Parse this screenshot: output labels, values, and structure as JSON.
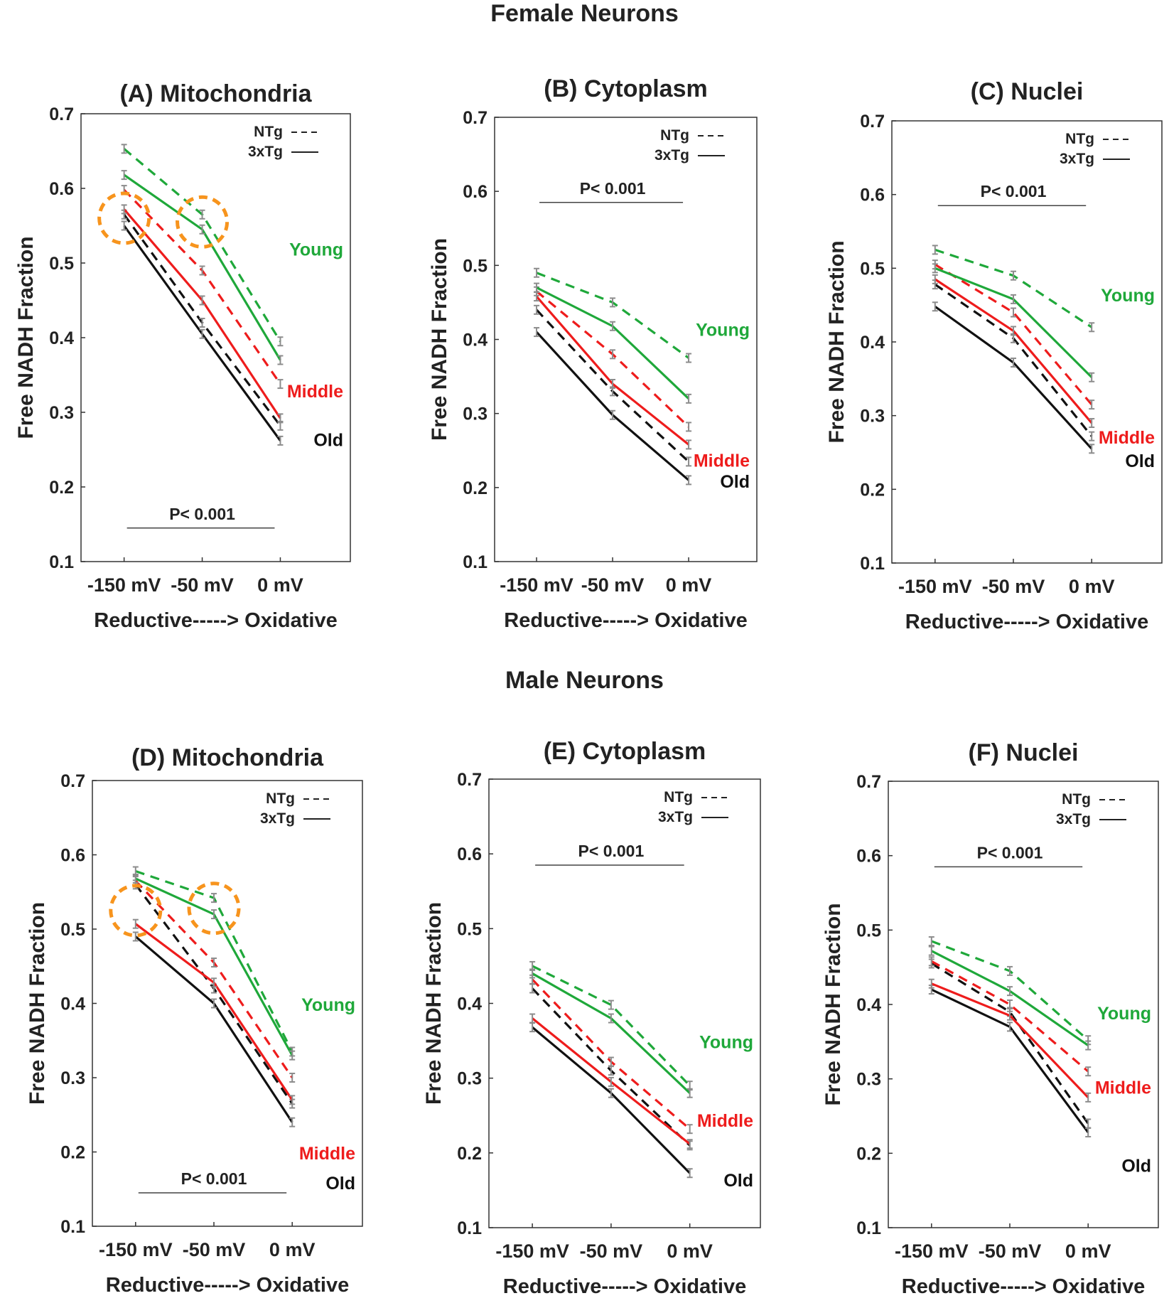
{
  "groups": [
    {
      "title": "Female Neurons"
    },
    {
      "title": "Male Neurons"
    }
  ],
  "colors": {
    "young": "#1fa83a",
    "middle": "#ee1c1c",
    "old": "#111111",
    "highlight": "#f7941d",
    "errorbar": "#8c8c8c"
  },
  "chart_data": [
    {
      "type": "line",
      "group": "Female Neurons",
      "title": "(A) Mitochondria",
      "xlabel": "Reductive-----> Oxidative",
      "ylabel": "Free NADH Fraction",
      "categories": [
        "-150 mV",
        "-50 mV",
        "0 mV"
      ],
      "ylim": [
        0.1,
        0.7
      ],
      "yticks": [
        "0.1",
        "0.2",
        "0.3",
        "0.4",
        "0.5",
        "0.6",
        "0.7"
      ],
      "legend": {
        "ntg": "NTg",
        "tg": "3xTg",
        "position": "top-right"
      },
      "pvalue": {
        "text": "P< 0.001",
        "placement": "bottom"
      },
      "highlight_circles": [
        {
          "category": "-150 mV",
          "y": 0.56
        },
        {
          "category": "-50 mV",
          "y": 0.555
        }
      ],
      "labels": [
        {
          "text": "Young",
          "color": "young",
          "y": 0.51
        },
        {
          "text": "Middle",
          "color": "middle",
          "y": 0.32
        },
        {
          "text": "Old",
          "color": "old",
          "y": 0.255
        }
      ],
      "series": [
        {
          "name": "Young NTg",
          "age": "young",
          "genotype": "NTg",
          "values": [
            0.653,
            0.565,
            0.395
          ]
        },
        {
          "name": "Young 3xTg",
          "age": "young",
          "genotype": "3xTg",
          "values": [
            0.618,
            0.545,
            0.37
          ]
        },
        {
          "name": "Middle NTg",
          "age": "middle",
          "genotype": "NTg",
          "values": [
            0.598,
            0.49,
            0.338
          ]
        },
        {
          "name": "Middle 3xTg",
          "age": "middle",
          "genotype": "3xTg",
          "values": [
            0.572,
            0.45,
            0.292
          ]
        },
        {
          "name": "Old NTg",
          "age": "old",
          "genotype": "NTg",
          "values": [
            0.565,
            0.42,
            0.282
          ]
        },
        {
          "name": "Old 3xTg",
          "age": "old",
          "genotype": "3xTg",
          "values": [
            0.55,
            0.405,
            0.262
          ]
        }
      ]
    },
    {
      "type": "line",
      "group": "Female Neurons",
      "title": "(B) Cytoplasm",
      "xlabel": "Reductive-----> Oxidative",
      "ylabel": "Free NADH Fraction",
      "categories": [
        "-150 mV",
        "-50 mV",
        "0 mV"
      ],
      "ylim": [
        0.1,
        0.7
      ],
      "yticks": [
        "0.1",
        "0.2",
        "0.3",
        "0.4",
        "0.5",
        "0.6",
        "0.7"
      ],
      "legend": {
        "ntg": "NTg",
        "tg": "3xTg",
        "position": "top-right"
      },
      "pvalue": {
        "text": "P< 0.001",
        "placement": "top"
      },
      "highlight_circles": [],
      "labels": [
        {
          "text": "Young",
          "color": "young",
          "y": 0.405
        },
        {
          "text": "Middle",
          "color": "middle",
          "y": 0.228
        },
        {
          "text": "Old",
          "color": "old",
          "y": 0.2
        }
      ],
      "series": [
        {
          "name": "Young NTg",
          "age": "young",
          "genotype": "NTg",
          "values": [
            0.49,
            0.45,
            0.375
          ]
        },
        {
          "name": "Young 3xTg",
          "age": "young",
          "genotype": "3xTg",
          "values": [
            0.47,
            0.418,
            0.32
          ]
        },
        {
          "name": "Middle NTg",
          "age": "middle",
          "genotype": "NTg",
          "values": [
            0.465,
            0.38,
            0.282
          ]
        },
        {
          "name": "Middle 3xTg",
          "age": "middle",
          "genotype": "3xTg",
          "values": [
            0.458,
            0.34,
            0.258
          ]
        },
        {
          "name": "Old NTg",
          "age": "old",
          "genotype": "NTg",
          "values": [
            0.44,
            0.33,
            0.235
          ]
        },
        {
          "name": "Old 3xTg",
          "age": "old",
          "genotype": "3xTg",
          "values": [
            0.41,
            0.298,
            0.21
          ]
        }
      ]
    },
    {
      "type": "line",
      "group": "Female Neurons",
      "title": "(C) Nuclei",
      "xlabel": "Reductive-----> Oxidative",
      "ylabel": "Free NADH Fraction",
      "categories": [
        "-150 mV",
        "-50 mV",
        "0 mV"
      ],
      "ylim": [
        0.1,
        0.7
      ],
      "yticks": [
        "0.1",
        "0.2",
        "0.3",
        "0.4",
        "0.5",
        "0.6",
        "0.7"
      ],
      "legend": {
        "ntg": "NTg",
        "tg": "3xTg",
        "position": "top-right"
      },
      "pvalue": {
        "text": "P< 0.001",
        "placement": "top"
      },
      "highlight_circles": [],
      "labels": [
        {
          "text": "Young",
          "color": "young",
          "y": 0.455
        },
        {
          "text": "Middle",
          "color": "middle",
          "y": 0.262
        },
        {
          "text": "Old",
          "color": "old",
          "y": 0.23
        }
      ],
      "series": [
        {
          "name": "Young NTg",
          "age": "young",
          "genotype": "NTg",
          "values": [
            0.525,
            0.49,
            0.42
          ]
        },
        {
          "name": "Young 3xTg",
          "age": "young",
          "genotype": "3xTg",
          "values": [
            0.5,
            0.458,
            0.352
          ]
        },
        {
          "name": "Middle NTg",
          "age": "middle",
          "genotype": "NTg",
          "values": [
            0.505,
            0.44,
            0.315
          ]
        },
        {
          "name": "Middle 3xTg",
          "age": "middle",
          "genotype": "3xTg",
          "values": [
            0.485,
            0.415,
            0.29
          ]
        },
        {
          "name": "Old NTg",
          "age": "old",
          "genotype": "NTg",
          "values": [
            0.478,
            0.405,
            0.272
          ]
        },
        {
          "name": "Old 3xTg",
          "age": "old",
          "genotype": "3xTg",
          "values": [
            0.448,
            0.372,
            0.255
          ]
        }
      ]
    },
    {
      "type": "line",
      "group": "Male Neurons",
      "title": "(D) Mitochondria",
      "xlabel": "Reductive-----> Oxidative",
      "ylabel": "Free NADH Fraction",
      "categories": [
        "-150 mV",
        "-50 mV",
        "0 mV"
      ],
      "ylim": [
        0.1,
        0.7
      ],
      "yticks": [
        "0.1",
        "0.2",
        "0.3",
        "0.4",
        "0.5",
        "0.6",
        "0.7"
      ],
      "legend": {
        "ntg": "NTg",
        "tg": "3xTg",
        "position": "top-right"
      },
      "pvalue": {
        "text": "P< 0.001",
        "placement": "bottom"
      },
      "highlight_circles": [
        {
          "category": "-150 mV",
          "y": 0.525
        },
        {
          "category": "-50 mV",
          "y": 0.528
        }
      ],
      "labels": [
        {
          "text": "Young",
          "color": "young",
          "y": 0.39
        },
        {
          "text": "Middle",
          "color": "middle",
          "y": 0.19
        },
        {
          "text": "Old",
          "color": "old",
          "y": 0.15
        }
      ],
      "series": [
        {
          "name": "Young NTg",
          "age": "young",
          "genotype": "NTg",
          "values": [
            0.578,
            0.542,
            0.335
          ]
        },
        {
          "name": "Young 3xTg",
          "age": "young",
          "genotype": "3xTg",
          "values": [
            0.568,
            0.52,
            0.33
          ]
        },
        {
          "name": "Middle NTg",
          "age": "middle",
          "genotype": "NTg",
          "values": [
            0.565,
            0.455,
            0.3
          ]
        },
        {
          "name": "Middle 3xTg",
          "age": "middle",
          "genotype": "3xTg",
          "values": [
            0.507,
            0.428,
            0.27
          ]
        },
        {
          "name": "Old NTg",
          "age": "old",
          "genotype": "NTg",
          "values": [
            0.56,
            0.42,
            0.265
          ]
        },
        {
          "name": "Old 3xTg",
          "age": "old",
          "genotype": "3xTg",
          "values": [
            0.49,
            0.4,
            0.24
          ]
        }
      ]
    },
    {
      "type": "line",
      "group": "Male Neurons",
      "title": "(E) Cytoplasm",
      "xlabel": "Reductive-----> Oxidative",
      "ylabel": "Free NADH Fraction",
      "categories": [
        "-150 mV",
        "-50 mV",
        "0 mV"
      ],
      "ylim": [
        0.1,
        0.7
      ],
      "yticks": [
        "0.1",
        "0.2",
        "0.3",
        "0.4",
        "0.5",
        "0.6",
        "0.7"
      ],
      "legend": {
        "ntg": "NTg",
        "tg": "3xTg",
        "position": "top-right"
      },
      "pvalue": {
        "text": "P< 0.001",
        "placement": "top"
      },
      "highlight_circles": [],
      "labels": [
        {
          "text": "Young",
          "color": "young",
          "y": 0.34
        },
        {
          "text": "Middle",
          "color": "middle",
          "y": 0.235
        },
        {
          "text": "Old",
          "color": "old",
          "y": 0.155
        }
      ],
      "series": [
        {
          "name": "Young NTg",
          "age": "young",
          "genotype": "NTg",
          "values": [
            0.45,
            0.398,
            0.29
          ]
        },
        {
          "name": "Young 3xTg",
          "age": "young",
          "genotype": "3xTg",
          "values": [
            0.44,
            0.38,
            0.28
          ]
        },
        {
          "name": "Middle NTg",
          "age": "middle",
          "genotype": "NTg",
          "values": [
            0.432,
            0.322,
            0.232
          ]
        },
        {
          "name": "Middle 3xTg",
          "age": "middle",
          "genotype": "3xTg",
          "values": [
            0.38,
            0.295,
            0.212
          ]
        },
        {
          "name": "Old NTg",
          "age": "old",
          "genotype": "NTg",
          "values": [
            0.42,
            0.31,
            0.21
          ]
        },
        {
          "name": "Old 3xTg",
          "age": "old",
          "genotype": "3xTg",
          "values": [
            0.368,
            0.28,
            0.173
          ]
        }
      ]
    },
    {
      "type": "line",
      "group": "Male Neurons",
      "title": "(F) Nuclei",
      "xlabel": "Reductive-----> Oxidative",
      "ylabel": "Free NADH Fraction",
      "categories": [
        "-150 mV",
        "-50 mV",
        "0 mV"
      ],
      "ylim": [
        0.1,
        0.7
      ],
      "yticks": [
        "0.1",
        "0.2",
        "0.3",
        "0.4",
        "0.5",
        "0.6",
        "0.7"
      ],
      "legend": {
        "ntg": "NTg",
        "tg": "3xTg",
        "position": "top-right"
      },
      "pvalue": {
        "text": "P< 0.001",
        "placement": "top"
      },
      "highlight_circles": [],
      "labels": [
        {
          "text": "Young",
          "color": "young",
          "y": 0.38
        },
        {
          "text": "Middle",
          "color": "middle",
          "y": 0.28
        },
        {
          "text": "Old",
          "color": "old",
          "y": 0.175
        }
      ],
      "series": [
        {
          "name": "Young NTg",
          "age": "young",
          "genotype": "NTg",
          "values": [
            0.485,
            0.445,
            0.352
          ]
        },
        {
          "name": "Young 3xTg",
          "age": "young",
          "genotype": "3xTg",
          "values": [
            0.472,
            0.418,
            0.345
          ]
        },
        {
          "name": "Middle NTg",
          "age": "middle",
          "genotype": "NTg",
          "values": [
            0.458,
            0.4,
            0.31
          ]
        },
        {
          "name": "Middle 3xTg",
          "age": "middle",
          "genotype": "3xTg",
          "values": [
            0.428,
            0.385,
            0.275
          ]
        },
        {
          "name": "Old NTg",
          "age": "old",
          "genotype": "NTg",
          "values": [
            0.455,
            0.39,
            0.24
          ]
        },
        {
          "name": "Old 3xTg",
          "age": "old",
          "genotype": "3xTg",
          "values": [
            0.42,
            0.37,
            0.228
          ]
        }
      ]
    }
  ]
}
